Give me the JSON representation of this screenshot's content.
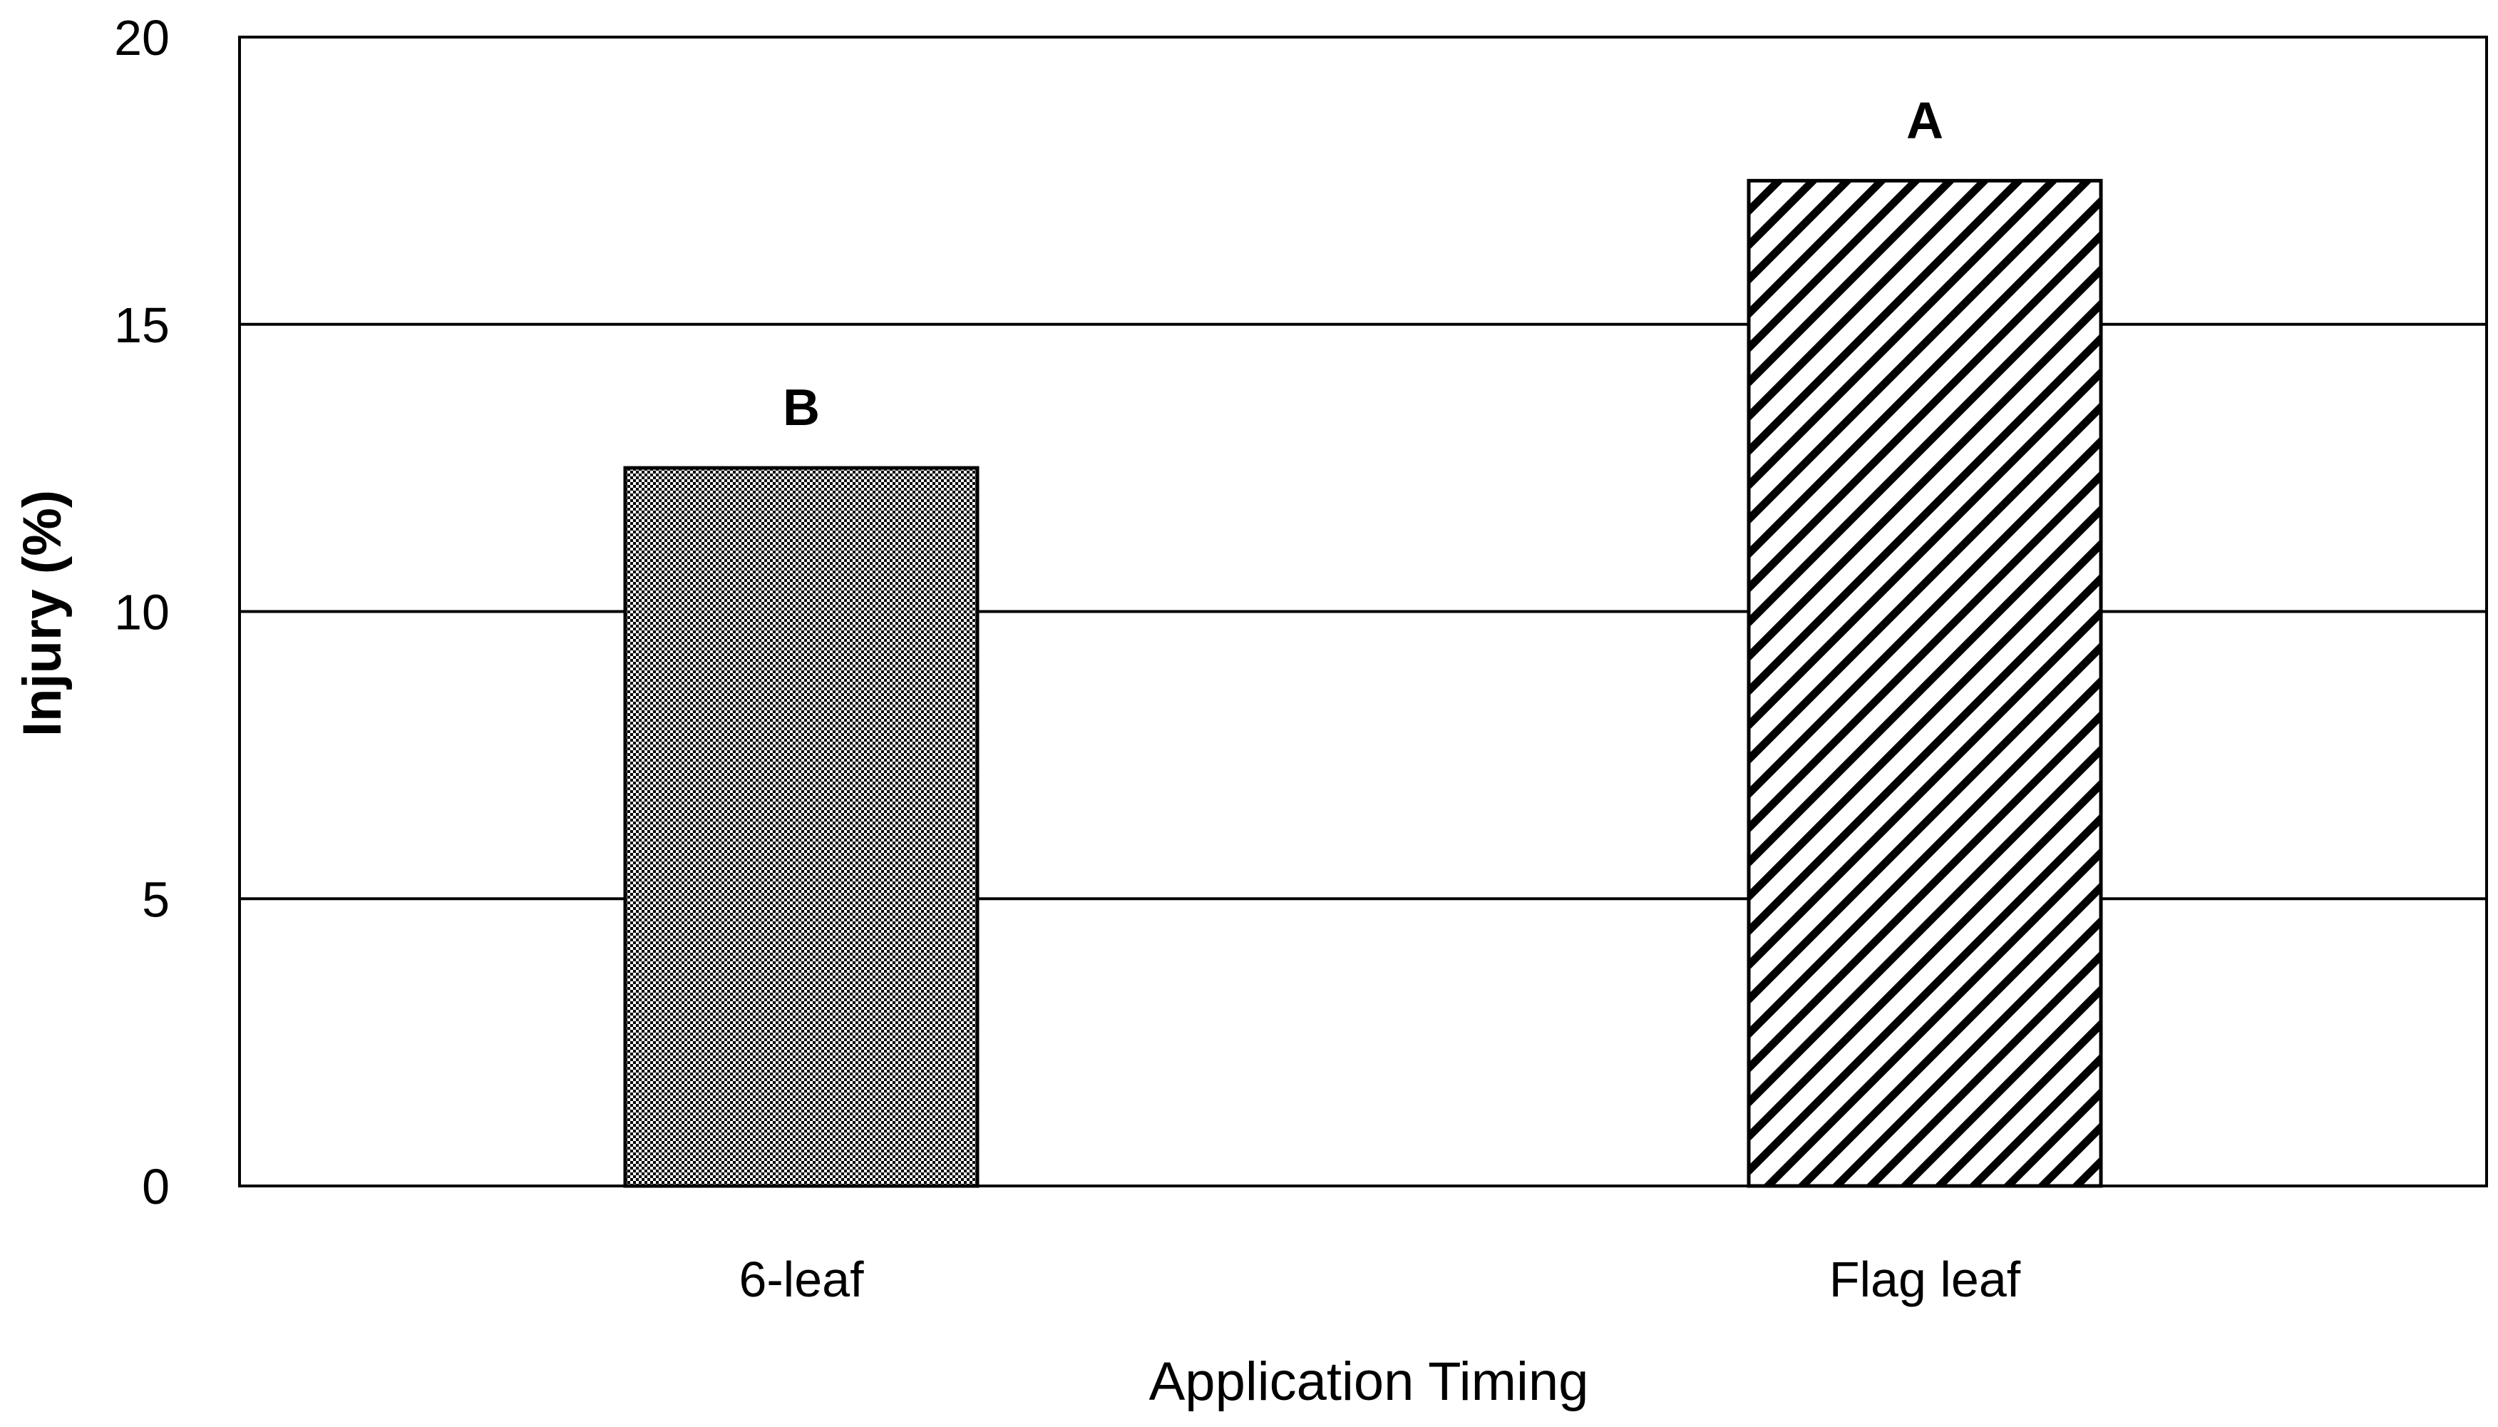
{
  "chart_data": {
    "type": "bar",
    "categories": [
      "6-leaf",
      "Flag leaf"
    ],
    "values": [
      12.5,
      17.5
    ],
    "significance_letters": [
      "B",
      "A"
    ],
    "bar_patterns": [
      "fine-checker",
      "diagonal-hatch"
    ],
    "title": "",
    "xlabel": "Application Timing",
    "ylabel": "Injury (%)",
    "ylim": [
      0,
      20
    ],
    "yticks": [
      0,
      5,
      10,
      15,
      20
    ],
    "ytick_labels": [
      "0",
      "5",
      "10",
      "15",
      "20"
    ],
    "grid": "horizontal",
    "legend": "none",
    "colors": {
      "axis": "#000000",
      "grid": "#000000",
      "bar_fill_base": "#ffffff",
      "bar_pattern": "#000000"
    }
  }
}
